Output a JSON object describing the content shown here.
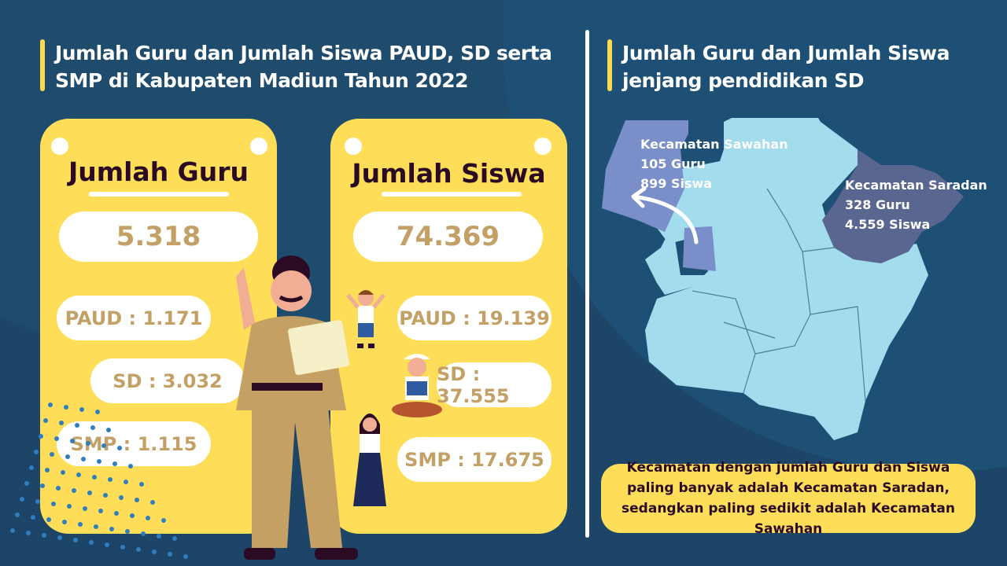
{
  "left": {
    "title": "Jumlah Guru dan Jumlah Siswa PAUD, SD serta SMP di Kabupaten Madiun Tahun 2022",
    "guru": {
      "heading": "Jumlah Guru",
      "total": "5.318",
      "paud": "PAUD : 1.171",
      "sd": "SD : 3.032",
      "smp": "SMP : 1.115"
    },
    "siswa": {
      "heading": "Jumlah Siswa",
      "total": "74.369",
      "paud": "PAUD : 19.139",
      "sd": "SD : 37.555",
      "smp": "SMP : 17.675"
    }
  },
  "right": {
    "title": "Jumlah Guru dan Jumlah Siswa jenjang pendidikan SD",
    "sawahan": {
      "name": "Kecamatan Sawahan",
      "guru": "105 Guru",
      "siswa": "899 Siswa"
    },
    "saradan": {
      "name": "Kecamatan Saradan",
      "guru": "328 Guru",
      "siswa": "4.559 Siswa"
    },
    "note": "Kecamatan dengan jumlah Guru dan Siswa paling banyak adalah Kecamatan Saradan, sedangkan paling sedikit adalah Kecamatan Sawahan"
  },
  "colors": {
    "background": "#1c4568",
    "card": "#fede59",
    "number": "#c3a066",
    "map": "#a3dcec",
    "sawahan": "#7a8fc9",
    "saradan": "#586690"
  }
}
